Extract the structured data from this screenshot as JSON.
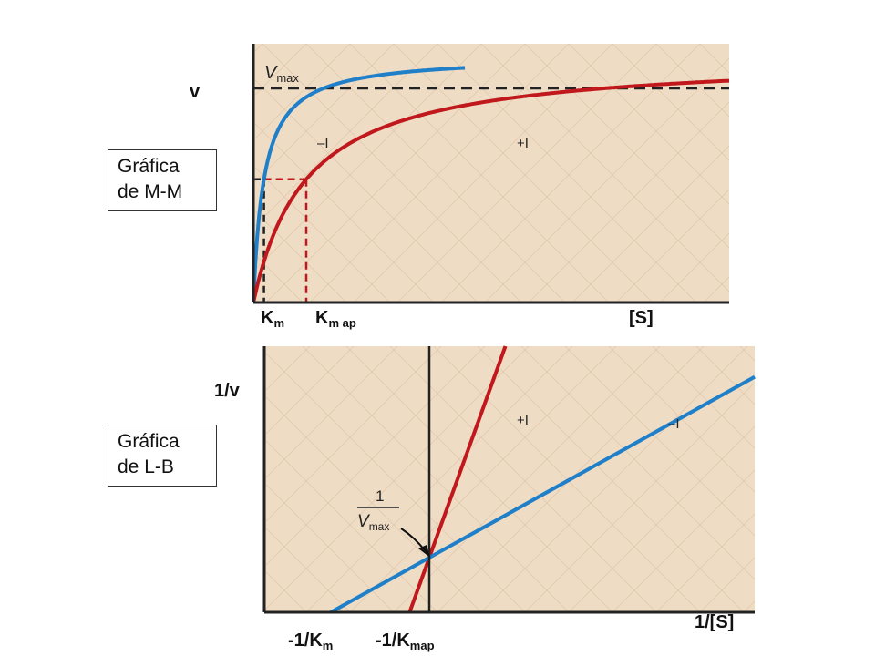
{
  "boxes": {
    "mm": {
      "line1": "Gráfica",
      "line2": "de M-M"
    },
    "lb": {
      "line1": "Gráfica",
      "line2": "de L-B"
    }
  },
  "colors": {
    "background": "#efdcc4",
    "uninhibited": "#1f7fc8",
    "inhibited": "#c0181c",
    "axis": "#222222",
    "dashed": "#222222"
  },
  "chart_data": [
    {
      "type": "line",
      "name": "mm-plot",
      "ylabel": "v",
      "xlabel": "[S]",
      "inner_labels": {
        "vmax_main": "V",
        "vmax_sub": "max"
      },
      "series": [
        {
          "name": "–I",
          "color": "#1f7fc8",
          "vmax": 1.0,
          "km": 1.0
        },
        {
          "name": "+I",
          "color": "#c0181c",
          "vmax": 1.0,
          "km": 5.0
        }
      ],
      "xlim": [
        0,
        45
      ],
      "ylim": [
        0,
        1.05
      ],
      "x_markers": [
        {
          "main": "K",
          "sub": "m",
          "x": 1.0
        },
        {
          "main": "K",
          "sub": "m ap",
          "x": 5.0
        }
      ],
      "grid": false
    },
    {
      "type": "line",
      "name": "lb-plot",
      "ylabel": "1/v",
      "xlabel": "1/[S]",
      "inner_labels": {
        "vmax_num": "1",
        "vmax_main": "V",
        "vmax_sub": "max"
      },
      "series": [
        {
          "name": "–I",
          "color": "#1f7fc8",
          "slope": 1.0,
          "intercept": 1.0
        },
        {
          "name": "+I",
          "color": "#c0181c",
          "slope": 5.0,
          "intercept": 1.0
        }
      ],
      "xlim": [
        -1.4,
        4.5
      ],
      "ylim": [
        -0.2,
        6.2
      ],
      "x_markers": [
        {
          "main": "-1/K",
          "sub": "m"
        },
        {
          "main": "-1/K",
          "sub": "map"
        }
      ],
      "grid": false
    }
  ]
}
